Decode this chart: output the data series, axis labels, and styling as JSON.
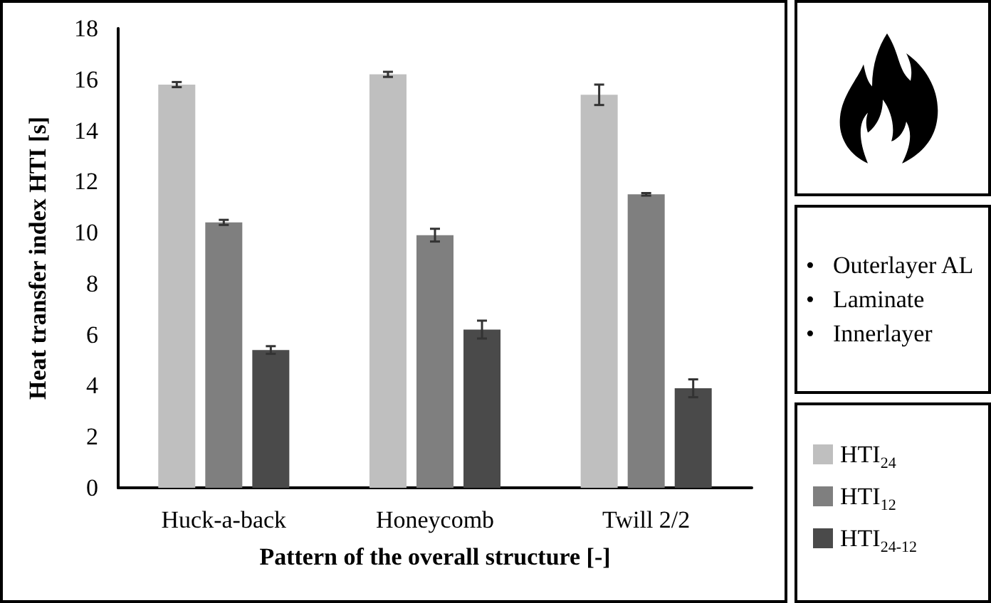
{
  "chart_data": {
    "type": "bar",
    "xlabel": "Pattern of the overall structure [-]",
    "ylabel": "Heat transfer index HTI [s]",
    "categories": [
      "Huck-a-back",
      "Honeycomb",
      "Twill 2/2"
    ],
    "series": [
      {
        "name": "HTI$_{24}$",
        "color": "#bfbfbf",
        "values": [
          15.8,
          16.2,
          15.4
        ],
        "errors": [
          0.1,
          0.1,
          0.4
        ]
      },
      {
        "name": "HTI$_{12}$",
        "color": "#7f7f7f",
        "values": [
          10.4,
          9.9,
          11.5
        ],
        "errors": [
          0.1,
          0.25,
          0.05
        ]
      },
      {
        "name": "HTI$_{24-12}$",
        "color": "#4a4a4a",
        "values": [
          5.4,
          6.2,
          3.9
        ],
        "errors": [
          0.15,
          0.35,
          0.35
        ]
      }
    ],
    "ylim": [
      0,
      18
    ],
    "yticks": [
      0,
      2,
      4,
      6,
      8,
      10,
      12,
      14,
      16,
      18
    ],
    "grid": false,
    "legend": "bottom right",
    "annotations": [
      "• Outerlayer AL",
      "• Laminate",
      "• Innerlayer"
    ]
  }
}
